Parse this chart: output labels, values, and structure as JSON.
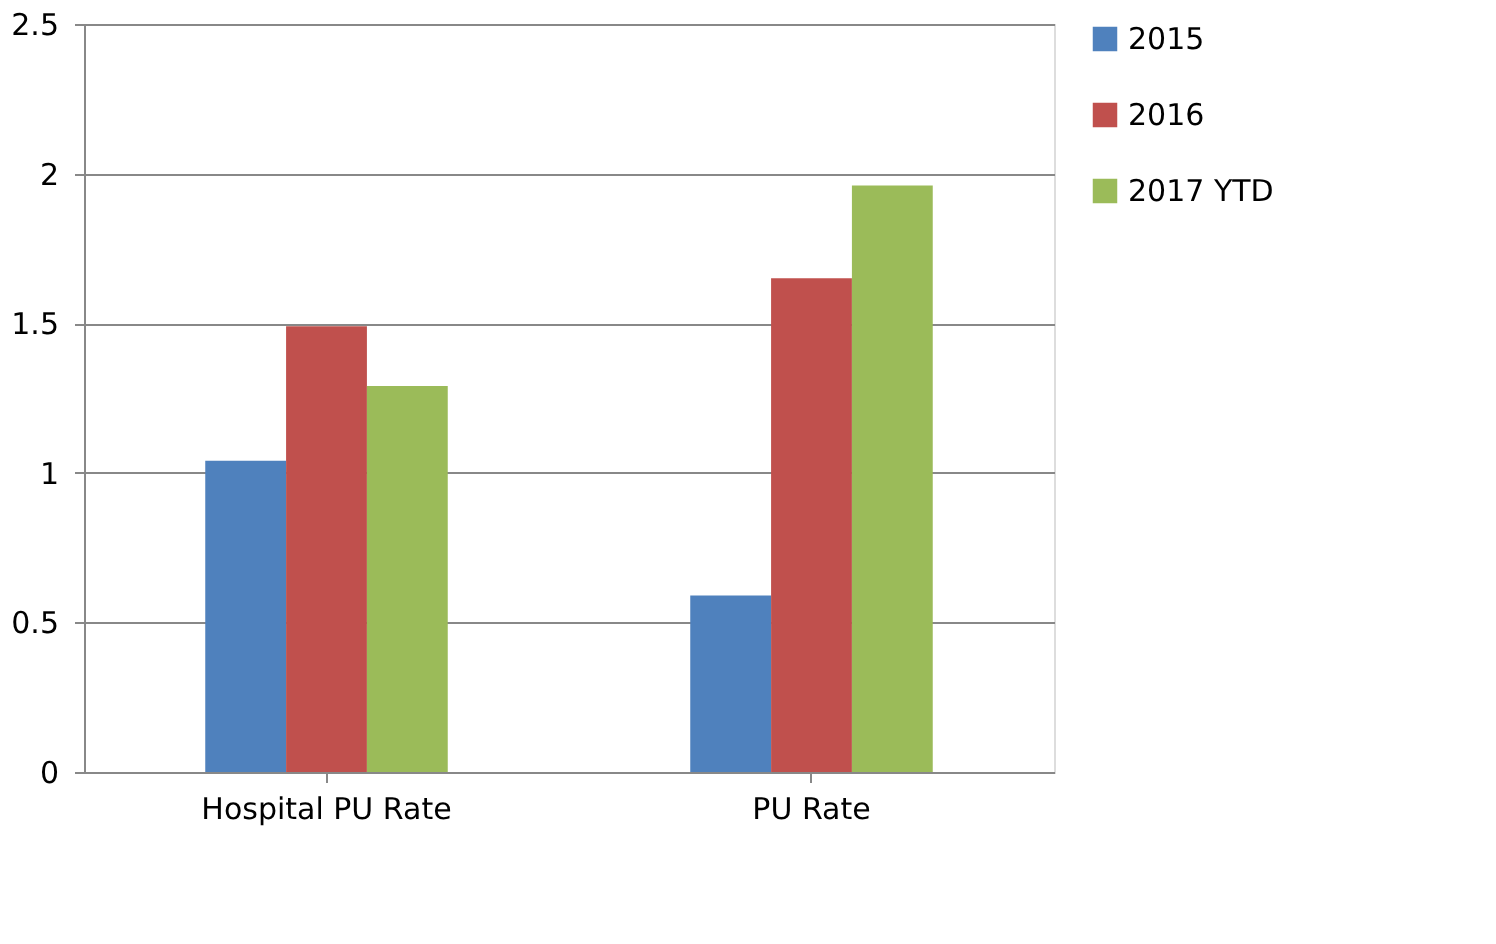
{
  "chart_data": {
    "type": "bar",
    "categories": [
      "Hospital PU Rate",
      "PU Rate"
    ],
    "series": [
      {
        "name": "2015",
        "color": "#4f81bd",
        "values": [
          1.04,
          0.59
        ]
      },
      {
        "name": "2016",
        "color": "#c0504d",
        "values": [
          1.49,
          1.65
        ]
      },
      {
        "name": "2017 YTD",
        "color": "#9bbb59",
        "values": [
          1.29,
          1.96
        ]
      }
    ],
    "ylim": [
      0,
      2.5
    ],
    "yticks": [
      0,
      0.5,
      1,
      1.5,
      2,
      2.5
    ],
    "grid": "y",
    "legend": "right"
  }
}
